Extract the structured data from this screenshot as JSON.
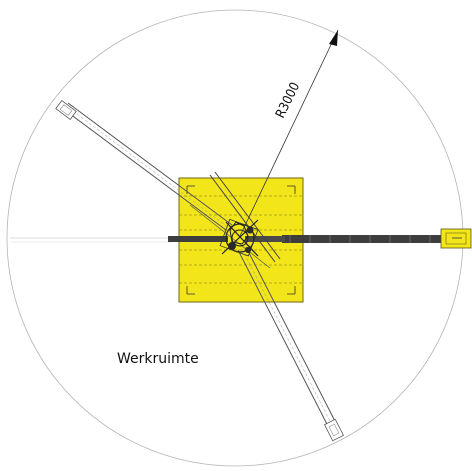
{
  "diagram": {
    "radius_label": "R3000",
    "zone_label": "Werkruimte",
    "colors": {
      "platform_fill": "#f2e51a",
      "platform_stroke": "#6b6410",
      "line": "#555555",
      "dark": "#3a3a3a",
      "pad_fill": "#f2e51a",
      "circle": "#aaaaaa"
    }
  }
}
